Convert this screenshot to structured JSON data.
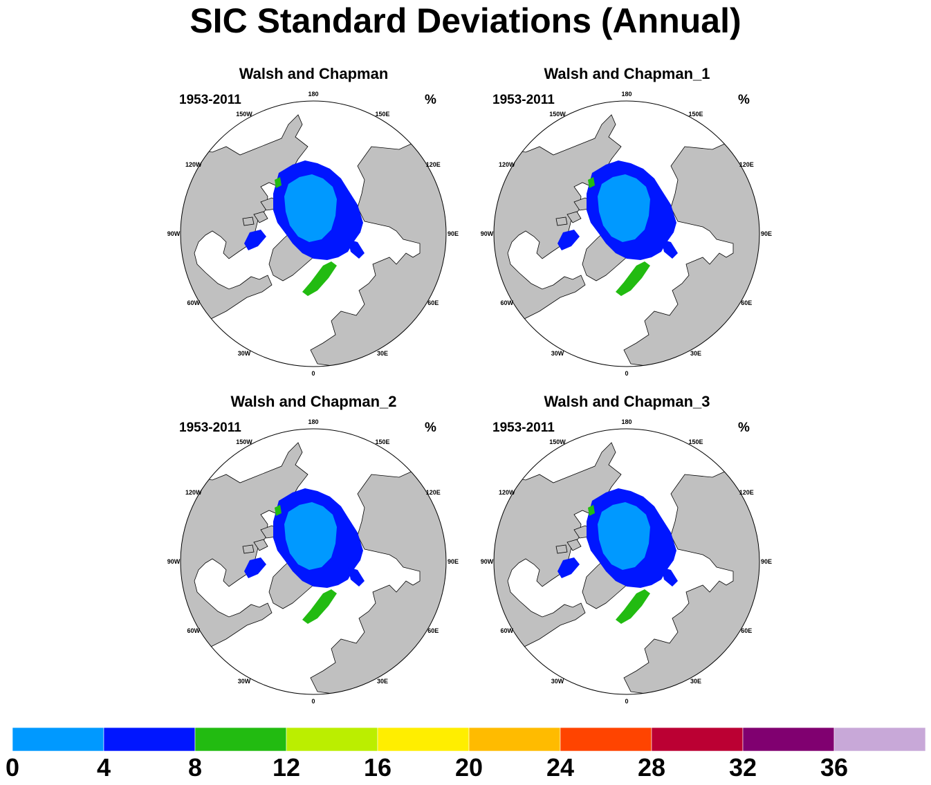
{
  "title": "SIC Standard Deviations (Annual)",
  "colors": {
    "land": "#c0c0c0",
    "ocean": "#ffffff",
    "coast": "#000000"
  },
  "chart_data": {
    "type": "heatmap",
    "projection": "north polar stereographic",
    "lon_labels": [
      "180",
      "150E",
      "120E",
      "90E",
      "60E",
      "30E",
      "0",
      "30W",
      "60W",
      "90W",
      "120W",
      "150W"
    ],
    "colorbar": {
      "levels": [
        "0",
        "4",
        "8",
        "12",
        "16",
        "20",
        "24",
        "28",
        "32",
        "36"
      ],
      "colors": [
        "#0099ff",
        "#0016ff",
        "#22bb11",
        "#bbee00",
        "#ffee00",
        "#ffbb00",
        "#ff4400",
        "#bb0033",
        "#800070",
        "#c8a8d8"
      ]
    },
    "panels": [
      {
        "name": "Walsh and Chapman",
        "period": "1953-2011",
        "unit": "%"
      },
      {
        "name": "Walsh and Chapman_1",
        "period": "1953-2011",
        "unit": "%"
      },
      {
        "name": "Walsh and Chapman_2",
        "period": "1953-2011",
        "unit": "%"
      },
      {
        "name": "Walsh and Chapman_3",
        "period": "1953-2011",
        "unit": "%"
      }
    ]
  }
}
